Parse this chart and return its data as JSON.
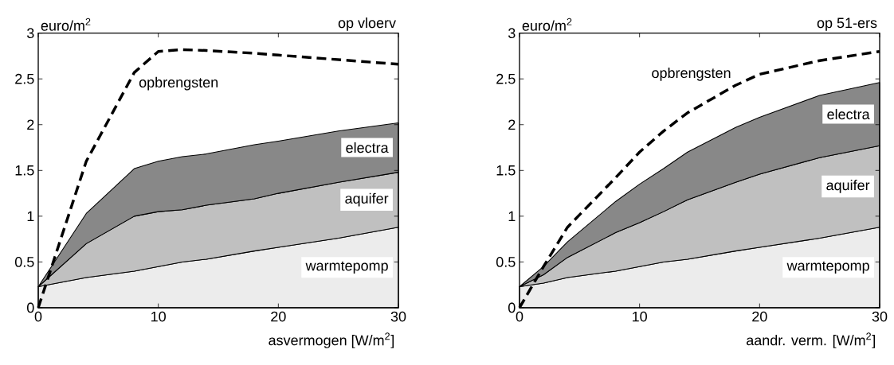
{
  "chart_data": [
    {
      "type": "area",
      "stacked": true,
      "legend": "right",
      "title": "op vloerv",
      "ylabel": "euro/m$^{2}$",
      "xlabel": "asvermogen [W/m$^{2}$]",
      "xlim": [
        0,
        30
      ],
      "ylim": [
        0,
        3
      ],
      "xticks": [
        0,
        10,
        20,
        30
      ],
      "yticks": [
        0,
        0.5,
        1,
        1.5,
        2,
        2.5,
        3
      ],
      "x": [
        0,
        4,
        8,
        10,
        12,
        14,
        18,
        20,
        25,
        30
      ],
      "series": [
        {
          "name": "warmtepomp",
          "color": "#ececec",
          "values": [
            0.23,
            0.33,
            0.4,
            0.45,
            0.5,
            0.53,
            0.62,
            0.66,
            0.76,
            0.88
          ]
        },
        {
          "name": "aquifer",
          "color": "#c0c0c0",
          "values": [
            0,
            0.37,
            0.6,
            0.6,
            0.57,
            0.59,
            0.57,
            0.59,
            0.61,
            0.6
          ]
        },
        {
          "name": "electra",
          "color": "#888888",
          "values": [
            0,
            0.33,
            0.52,
            0.55,
            0.58,
            0.56,
            0.59,
            0.57,
            0.56,
            0.54
          ]
        },
        {
          "name": "opbrengsten",
          "type": "line",
          "line_style": "dashed",
          "color": "#000000",
          "values": [
            0,
            1.6,
            2.57,
            2.8,
            2.82,
            2.81,
            2.78,
            2.76,
            2.71,
            2.66
          ]
        }
      ]
    },
    {
      "type": "area",
      "stacked": true,
      "legend": "right",
      "title": "op 51-ers",
      "ylabel": "euro/m$^{2}$",
      "xlabel": "aandr. verm. [W/m$^{2}$]",
      "xlim": [
        0,
        30
      ],
      "ylim": [
        0,
        3
      ],
      "xticks": [
        0,
        10,
        20,
        30
      ],
      "yticks": [
        0,
        0.5,
        1,
        1.5,
        2,
        2.5,
        3
      ],
      "x": [
        0,
        2,
        4,
        8,
        10,
        12,
        14,
        18,
        20,
        25,
        30
      ],
      "series": [
        {
          "name": "warmtepomp",
          "color": "#ececec",
          "values": [
            0.23,
            0.27,
            0.33,
            0.4,
            0.45,
            0.5,
            0.53,
            0.62,
            0.66,
            0.76,
            0.88
          ]
        },
        {
          "name": "aquifer",
          "color": "#c0c0c0",
          "values": [
            0,
            0.09,
            0.22,
            0.42,
            0.48,
            0.55,
            0.65,
            0.75,
            0.8,
            0.88,
            0.89
          ]
        },
        {
          "name": "electra",
          "color": "#888888",
          "values": [
            0,
            0.09,
            0.17,
            0.34,
            0.42,
            0.47,
            0.52,
            0.6,
            0.62,
            0.68,
            0.69
          ]
        },
        {
          "name": "opbrengsten",
          "type": "line",
          "line_style": "dashed",
          "color": "#000000",
          "values": [
            0,
            0.45,
            0.88,
            1.42,
            1.7,
            1.93,
            2.13,
            2.43,
            2.55,
            2.7,
            2.8
          ]
        }
      ]
    }
  ]
}
